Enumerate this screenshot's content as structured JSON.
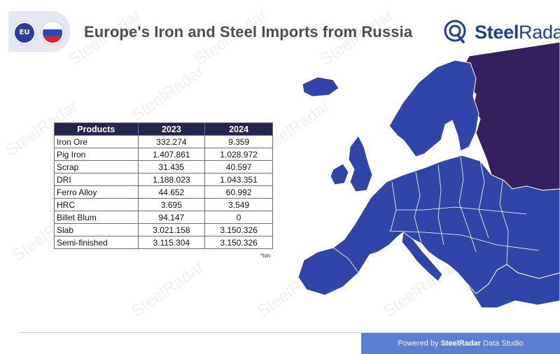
{
  "header": {
    "eu_flag_label": "EU",
    "title": "Europe's Iron and Steel Imports from Russia"
  },
  "logo": {
    "text_part1": "Steel",
    "text_part2": "Radar"
  },
  "watermark": "SteelRadar",
  "table": {
    "headers": [
      "Products",
      "2023",
      "2024"
    ],
    "rows": [
      [
        "Iron Ore",
        "332.274",
        "9.359"
      ],
      [
        "Pig Iron",
        "1.407.861",
        "1.028.972"
      ],
      [
        "Scrap",
        "31.435",
        "40.597"
      ],
      [
        "DRI",
        "1.188.023",
        "1.043.351"
      ],
      [
        "Ferro Alloy",
        "44.652",
        "60.992"
      ],
      [
        "HRC",
        "3.695",
        "3.549"
      ],
      [
        "Billet Blum",
        "94.147",
        "0"
      ],
      [
        "Slab",
        "3.021.158",
        "3.150.326"
      ],
      [
        "Semi-finished",
        "3.115.304",
        "3.150.326"
      ]
    ],
    "unit_note": "*ton"
  },
  "footer": {
    "prefix": "Powered by ",
    "brand": "SteelRadar",
    "suffix": " Data Studio"
  },
  "colors": {
    "europe": "#2f46a8",
    "russia": "#34205c",
    "header_dark": "#23254e",
    "accent": "#5c7fd3"
  },
  "icons": [
    "eu-flag-icon",
    "russia-flag-icon",
    "steelradar-logo-icon"
  ]
}
